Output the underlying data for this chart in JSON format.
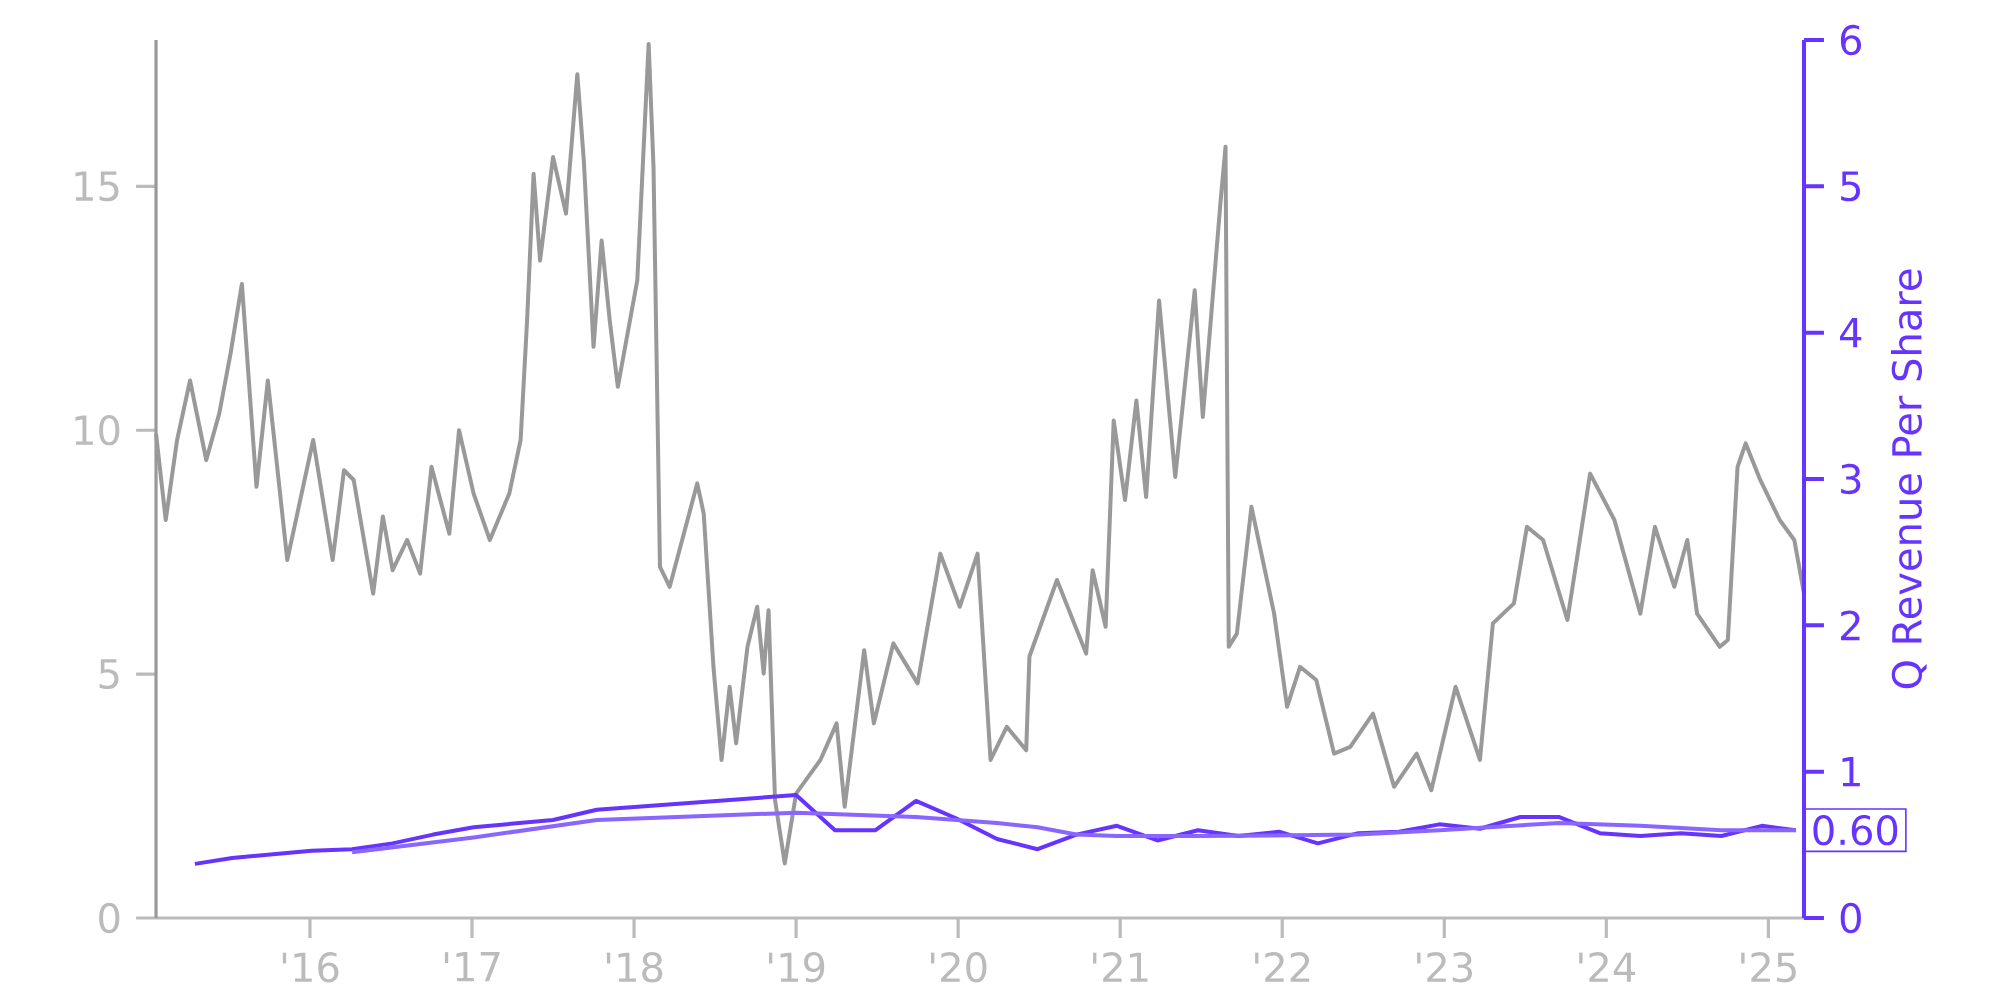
{
  "chart_data": {
    "type": "line",
    "y2label": "Q Revenue Per Share",
    "xlim": [
      2015.05,
      2025.22
    ],
    "xticks": [
      {
        "value": 2016,
        "label": "'16"
      },
      {
        "value": 2017,
        "label": "'17"
      },
      {
        "value": 2018,
        "label": "'18"
      },
      {
        "value": 2019,
        "label": "'19"
      },
      {
        "value": 2020,
        "label": "'20"
      },
      {
        "value": 2021,
        "label": "'21"
      },
      {
        "value": 2022,
        "label": "'22"
      },
      {
        "value": 2023,
        "label": "'23"
      },
      {
        "value": 2024,
        "label": "'24"
      },
      {
        "value": 2025,
        "label": "'25"
      }
    ],
    "ylim": [
      0,
      18
    ],
    "yticks": [
      0,
      5,
      10,
      15
    ],
    "y2lim": [
      0,
      6
    ],
    "y2ticks": [
      0,
      1,
      2,
      3,
      4,
      5,
      6
    ],
    "marker": "none",
    "line_style": "solid",
    "annotations": [
      "0.60"
    ],
    "series": [
      {
        "color": "#999999",
        "x": [
          2015.05,
          2015.11,
          2015.18,
          2015.26,
          2015.36,
          2015.44,
          2015.51,
          2015.58,
          2015.67,
          2015.74,
          2015.86,
          2016.02,
          2016.14,
          2016.21,
          2016.27,
          2016.39,
          2016.45,
          2016.51,
          2016.6,
          2016.68,
          2016.75,
          2016.86,
          2016.92,
          2017.01,
          2017.11,
          2017.23,
          2017.3,
          2017.34,
          2017.38,
          2017.42,
          2017.5,
          2017.58,
          2017.65,
          2017.69,
          2017.75,
          2017.8,
          2017.85,
          2017.9,
          2018.02,
          2018.09,
          2018.12,
          2018.16,
          2018.22,
          2018.39,
          2018.43,
          2018.49,
          2018.54,
          2018.59,
          2018.63,
          2018.7,
          2018.76,
          2018.8,
          2018.83,
          2018.87,
          2018.93,
          2019.0,
          2019.15,
          2019.25,
          2019.3,
          2019.42,
          2019.48,
          2019.6,
          2019.75,
          2019.89,
          2020.01,
          2020.12,
          2020.2,
          2020.3,
          2020.42,
          2020.44,
          2020.61,
          2020.79,
          2020.83,
          2020.91,
          2020.96,
          2021.03,
          2021.1,
          2021.16,
          2021.24,
          2021.34,
          2021.46,
          2021.51,
          2021.62,
          2021.65,
          2021.67,
          2021.72,
          2021.81,
          2021.95,
          2022.03,
          2022.11,
          2022.21,
          2022.32,
          2022.42,
          2022.56,
          2022.69,
          2022.83,
          2022.92,
          2023.07,
          2023.22,
          2023.3,
          2023.43,
          2023.51,
          2023.61,
          2023.76,
          2023.9,
          2024.05,
          2024.21,
          2024.3,
          2024.42,
          2024.5,
          2024.56,
          2024.7,
          2024.75,
          2024.81,
          2024.86,
          2024.95,
          2025.07,
          2025.16,
          2025.22
        ],
        "values": [
          9.93,
          8.16,
          9.8,
          11.02,
          9.39,
          10.34,
          11.57,
          13.0,
          8.84,
          11.02,
          7.34,
          9.8,
          7.34,
          9.18,
          8.98,
          6.65,
          8.23,
          7.13,
          7.75,
          7.06,
          9.25,
          7.88,
          10.0,
          8.7,
          7.75,
          8.7,
          9.8,
          12.25,
          15.26,
          13.48,
          15.6,
          14.44,
          17.3,
          15.53,
          11.71,
          13.89,
          12.25,
          10.89,
          13.07,
          17.92,
          15.4,
          7.2,
          6.79,
          8.91,
          8.29,
          5.15,
          3.24,
          4.74,
          3.58,
          5.56,
          6.38,
          5.01,
          6.31,
          2.42,
          1.12,
          2.55,
          3.24,
          3.99,
          2.28,
          5.49,
          3.99,
          5.63,
          4.81,
          7.47,
          6.38,
          7.47,
          3.24,
          3.92,
          3.44,
          5.36,
          6.93,
          5.42,
          7.13,
          5.97,
          10.2,
          8.57,
          10.61,
          8.63,
          12.66,
          9.04,
          12.87,
          10.27,
          14.71,
          15.81,
          5.56,
          5.83,
          8.43,
          6.24,
          4.33,
          5.15,
          4.88,
          3.37,
          3.51,
          4.19,
          2.69,
          3.37,
          2.62,
          4.74,
          3.24,
          6.04,
          6.45,
          8.02,
          7.75,
          6.11,
          9.11,
          8.16,
          6.24,
          8.02,
          6.79,
          7.75,
          6.24,
          5.56,
          5.7,
          9.25,
          9.73,
          8.98,
          8.16,
          7.75,
          6.65
        ]
      },
      {
        "color": "#6633ff",
        "axis": "y2",
        "x": [
          2015.29,
          2015.52,
          2016.01,
          2016.26,
          2016.51,
          2016.76,
          2017.01,
          2017.5,
          2017.77,
          2019.0,
          2019.24,
          2019.49,
          2019.74,
          2019.99,
          2020.24,
          2020.49,
          2020.73,
          2020.98,
          2021.23,
          2021.48,
          2021.73,
          2021.98,
          2022.22,
          2022.47,
          2022.72,
          2022.97,
          2023.22,
          2023.47,
          2023.71,
          2023.96,
          2024.21,
          2024.46,
          2024.71,
          2024.96,
          2025.17
        ],
        "values": [
          0.37,
          0.41,
          0.46,
          0.47,
          0.51,
          0.57,
          0.62,
          0.67,
          0.74,
          0.84,
          0.6,
          0.6,
          0.8,
          0.68,
          0.54,
          0.47,
          0.57,
          0.63,
          0.53,
          0.6,
          0.56,
          0.59,
          0.51,
          0.58,
          0.59,
          0.64,
          0.61,
          0.69,
          0.69,
          0.58,
          0.56,
          0.58,
          0.56,
          0.63,
          0.6
        ]
      },
      {
        "color": "#8866ff",
        "axis": "y2",
        "x": [
          2016.26,
          2017.01,
          2017.77,
          2019.0,
          2019.74,
          2020.24,
          2020.49,
          2020.73,
          2020.98,
          2021.48,
          2022.47,
          2022.97,
          2023.71,
          2024.21,
          2024.71,
          2025.17
        ],
        "values": [
          0.45,
          0.55,
          0.67,
          0.72,
          0.69,
          0.65,
          0.62,
          0.57,
          0.56,
          0.56,
          0.57,
          0.6,
          0.65,
          0.63,
          0.6,
          0.6
        ]
      }
    ]
  }
}
